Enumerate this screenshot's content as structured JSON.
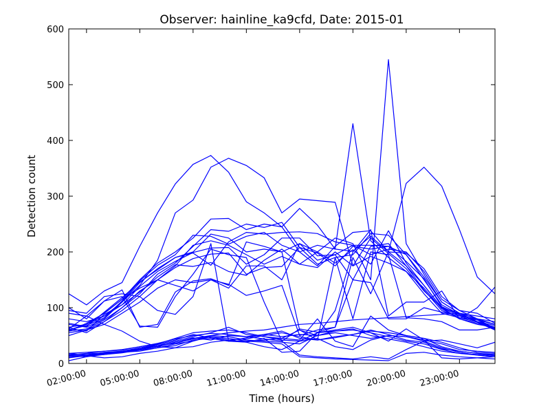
{
  "chart_data": {
    "type": "line",
    "title": "Observer: hainline_ka9cfd, Date: 2015-01",
    "xlabel": "Time (hours)",
    "ylabel": "Detection count",
    "x_tick_labels": [
      "02:00:00",
      "05:00:00",
      "08:00:00",
      "11:00:00",
      "14:00:00",
      "17:00:00",
      "20:00:00",
      "23:00:00"
    ],
    "x_tick_hours": [
      2,
      5,
      8,
      11,
      14,
      17,
      20,
      23
    ],
    "xlim": [
      1,
      25
    ],
    "ylim": [
      0,
      600
    ],
    "y_ticks": [
      0,
      100,
      200,
      300,
      400,
      500,
      600
    ],
    "grid": false,
    "line_color": "#0000ff",
    "x": [
      1,
      2,
      3,
      4,
      5,
      6,
      7,
      8,
      9,
      10,
      11,
      12,
      13,
      14,
      15,
      16,
      17,
      18,
      19,
      20,
      21,
      22,
      23,
      24,
      25
    ],
    "series": [
      {
        "values": [
          125,
          105,
          130,
          145,
          210,
          270,
          322,
          357,
          373,
          343,
          290,
          270,
          245,
          200,
          175,
          210,
          235,
          238,
          200,
          175,
          140,
          100,
          90,
          80,
          75
        ]
      },
      {
        "values": [
          80,
          75,
          85,
          110,
          140,
          185,
          270,
          293,
          352,
          368,
          355,
          333,
          270,
          295,
          292,
          289,
          175,
          225,
          197,
          170,
          130,
          100,
          85,
          75,
          65
        ]
      },
      {
        "values": [
          60,
          70,
          90,
          115,
          150,
          180,
          200,
          225,
          259,
          260,
          240,
          250,
          245,
          278,
          248,
          205,
          430,
          220,
          190,
          165,
          125,
          90,
          82,
          78,
          70
        ]
      },
      {
        "values": [
          65,
          55,
          75,
          100,
          125,
          160,
          180,
          210,
          240,
          237,
          250,
          244,
          253,
          208,
          178,
          190,
          195,
          233,
          230,
          195,
          150,
          105,
          88,
          75,
          62
        ]
      },
      {
        "values": [
          70,
          65,
          80,
          110,
          145,
          170,
          190,
          200,
          232,
          225,
          200,
          205,
          200,
          215,
          200,
          180,
          204,
          178,
          238,
          180,
          140,
          100,
          80,
          70,
          65
        ]
      },
      {
        "values": [
          58,
          62,
          78,
          100,
          130,
          150,
          175,
          212,
          220,
          212,
          195,
          178,
          192,
          178,
          200,
          225,
          215,
          150,
          545,
          215,
          160,
          110,
          90,
          80,
          70
        ]
      },
      {
        "values": [
          60,
          68,
          82,
          112,
          148,
          176,
          195,
          230,
          228,
          214,
          228,
          235,
          212,
          200,
          212,
          205,
          201,
          228,
          200,
          323,
          352,
          318,
          240,
          155,
          125
        ]
      },
      {
        "values": [
          62,
          58,
          88,
          105,
          138,
          165,
          183,
          199,
          207,
          208,
          178,
          195,
          225,
          225,
          193,
          195,
          212,
          195,
          205,
          200,
          165,
          115,
          95,
          90,
          72
        ]
      },
      {
        "values": [
          55,
          60,
          75,
          95,
          120,
          150,
          172,
          188,
          196,
          198,
          160,
          172,
          174,
          208,
          198,
          175,
          210,
          205,
          210,
          195,
          155,
          110,
          90,
          75,
          68
        ]
      },
      {
        "values": [
          72,
          66,
          92,
          118,
          146,
          168,
          190,
          198,
          176,
          218,
          235,
          232,
          235,
          236,
          233,
          218,
          212,
          212,
          210,
          183,
          152,
          102,
          87,
          78,
          63
        ]
      },
      {
        "values": [
          65,
          70,
          85,
          105,
          128,
          155,
          177,
          174,
          181,
          165,
          158,
          185,
          205,
          178,
          172,
          200,
          175,
          192,
          180,
          165,
          135,
          98,
          80,
          72,
          62
        ]
      },
      {
        "values": [
          50,
          60,
          70,
          90,
          110,
          135,
          150,
          145,
          150,
          135,
          175,
          175,
          150,
          215,
          185,
          195,
          150,
          210,
          215,
          175,
          132,
          95,
          82,
          74,
          60
        ]
      },
      {
        "values": [
          58,
          72,
          90,
          115,
          135,
          150,
          140,
          130,
          150,
          142,
          122,
          130,
          140,
          50,
          60,
          65,
          190,
          125,
          200,
          198,
          170,
          120,
          95,
          80,
          62
        ]
      },
      {
        "values": [
          62,
          85,
          112,
          132,
          65,
          70,
          128,
          148,
          152,
          140,
          218,
          210,
          200,
          60,
          50,
          95,
          200,
          240,
          85,
          110,
          110,
          130,
          80,
          100,
          137
        ]
      },
      {
        "values": [
          95,
          90,
          120,
          125,
          120,
          95,
          88,
          120,
          215,
          40,
          40,
          42,
          45,
          60,
          42,
          190,
          80,
          200,
          195,
          82,
          80,
          75,
          60,
          60,
          65
        ]
      },
      {
        "values": [
          100,
          80,
          112,
          120,
          67,
          65,
          120,
          160,
          205,
          195,
          190,
          110,
          40,
          62,
          56,
          65,
          150,
          145,
          80,
          80,
          100,
          92,
          85,
          80,
          60
        ]
      },
      {
        "values": [
          90,
          85,
          70,
          58,
          40,
          30,
          28,
          40,
          50,
          55,
          58,
          60,
          65,
          70,
          72,
          75,
          78,
          80,
          82,
          84,
          86,
          88,
          90,
          85,
          80
        ]
      },
      {
        "values": [
          18,
          15,
          20,
          22,
          28,
          32,
          40,
          48,
          55,
          65,
          52,
          48,
          45,
          42,
          80,
          40,
          30,
          85,
          60,
          50,
          45,
          30,
          22,
          18,
          15
        ]
      },
      {
        "values": [
          15,
          18,
          22,
          25,
          30,
          35,
          45,
          55,
          58,
          60,
          55,
          48,
          42,
          40,
          55,
          60,
          65,
          55,
          48,
          40,
          35,
          25,
          18,
          15,
          12
        ]
      },
      {
        "values": [
          12,
          15,
          18,
          20,
          25,
          30,
          38,
          45,
          50,
          48,
          42,
          40,
          38,
          35,
          50,
          55,
          50,
          45,
          50,
          48,
          40,
          28,
          20,
          15,
          12
        ]
      },
      {
        "values": [
          10,
          14,
          17,
          20,
          22,
          28,
          35,
          40,
          48,
          45,
          40,
          38,
          35,
          12,
          10,
          8,
          7,
          6,
          5,
          18,
          20,
          15,
          12,
          10,
          8
        ]
      },
      {
        "values": [
          15,
          14,
          16,
          19,
          24,
          28,
          32,
          42,
          45,
          40,
          38,
          45,
          20,
          22,
          55,
          58,
          60,
          55,
          40,
          62,
          42,
          35,
          25,
          22,
          20
        ]
      },
      {
        "values": [
          16,
          17,
          19,
          21,
          26,
          32,
          36,
          44,
          48,
          42,
          44,
          50,
          55,
          48,
          42,
          48,
          52,
          58,
          55,
          50,
          45,
          38,
          28,
          20,
          18
        ]
      },
      {
        "values": [
          14,
          12,
          16,
          20,
          28,
          34,
          42,
          52,
          46,
          40,
          46,
          52,
          48,
          52,
          50,
          58,
          62,
          50,
          44,
          38,
          30,
          22,
          18,
          16,
          14
        ]
      },
      {
        "values": [
          5,
          12,
          18,
          22,
          26,
          30,
          38,
          46,
          42,
          50,
          48,
          44,
          40,
          15,
          12,
          10,
          8,
          12,
          8,
          25,
          40,
          42,
          35,
          28,
          38
        ]
      },
      {
        "values": [
          18,
          20,
          22,
          24,
          30,
          36,
          44,
          50,
          54,
          52,
          48,
          52,
          58,
          45,
          42,
          46,
          52,
          60,
          52,
          42,
          38,
          26,
          22,
          18,
          16
        ]
      },
      {
        "values": [
          12,
          14,
          10,
          12,
          18,
          22,
          28,
          30,
          38,
          42,
          38,
          30,
          25,
          40,
          45,
          30,
          25,
          42,
          50,
          48,
          42,
          10,
          8,
          10,
          12
        ]
      }
    ]
  }
}
